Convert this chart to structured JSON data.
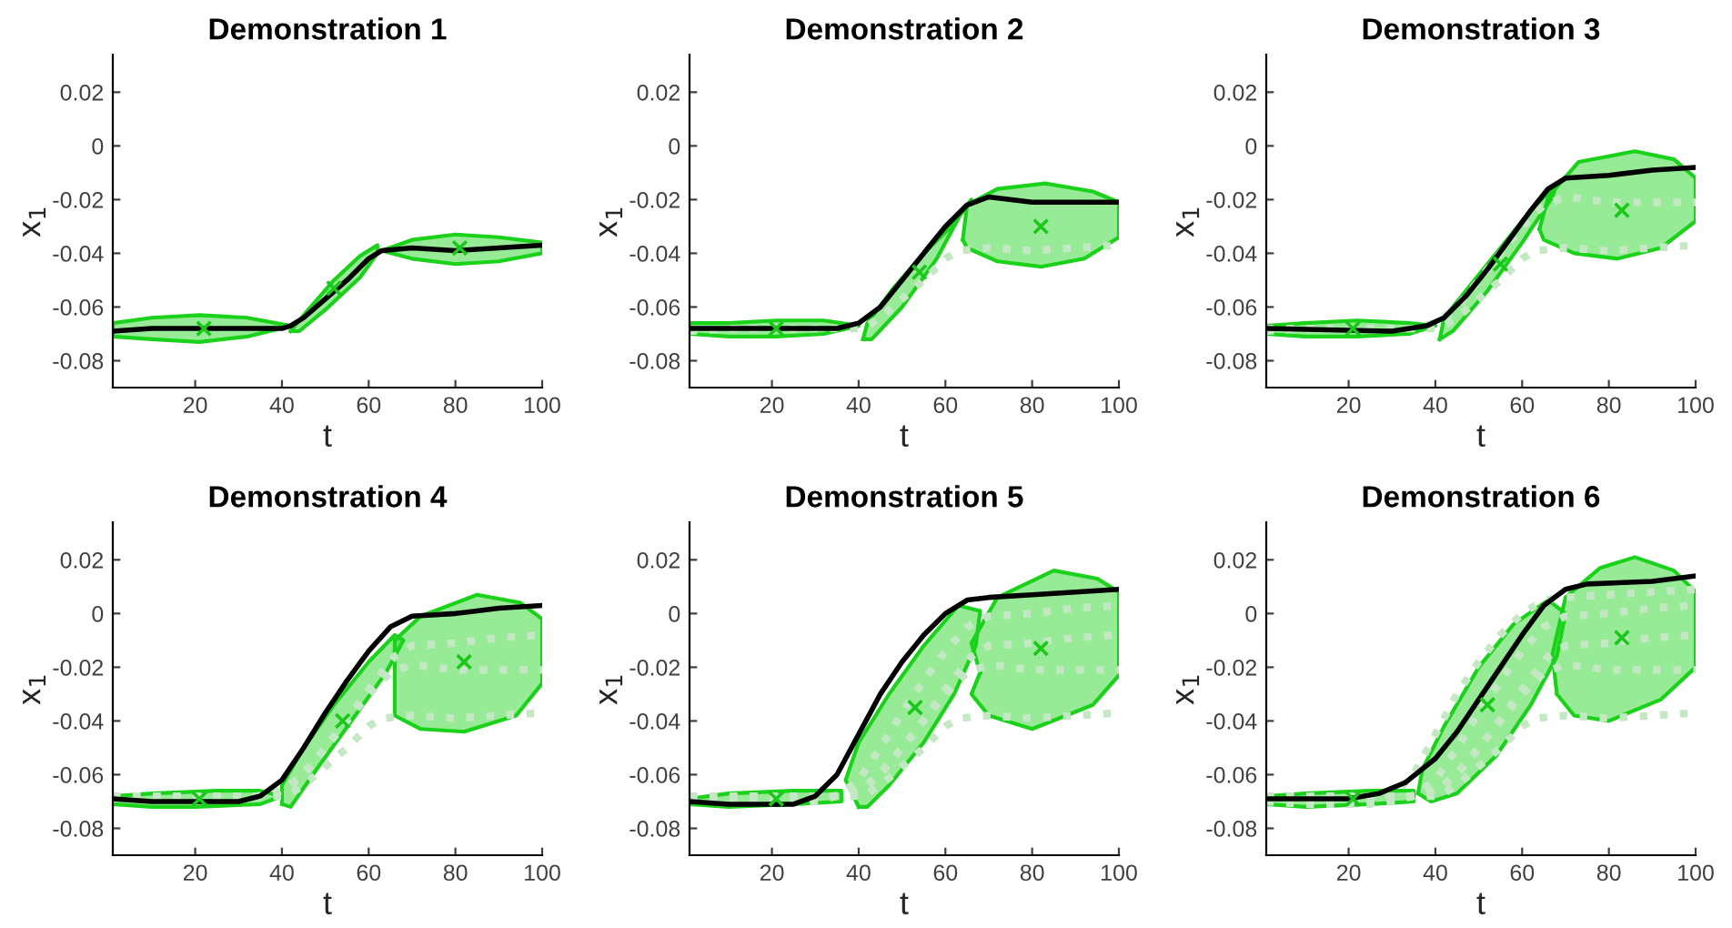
{
  "chart_data": [
    {
      "type": "line",
      "title": "Demonstration 1",
      "xlabel": "t",
      "ylabel": "x$_{1}$",
      "xlim": [
        1,
        100
      ],
      "ylim": [
        -0.09,
        0.034
      ],
      "xticks": [
        20,
        40,
        60,
        80,
        100
      ],
      "yticks": [
        -0.08,
        -0.06,
        -0.04,
        -0.02,
        0,
        0.02
      ],
      "series": [
        {
          "type": "area",
          "color": "#19d219",
          "x": [
            1,
            10,
            21,
            32,
            42,
            32,
            21,
            10,
            1
          ],
          "values": [
            -0.066,
            -0.064,
            -0.063,
            -0.064,
            -0.067,
            -0.071,
            -0.073,
            -0.072,
            -0.071
          ]
        },
        {
          "type": "area",
          "color": "#19d219",
          "x": [
            42,
            45,
            52,
            58,
            62,
            62,
            58,
            50,
            44
          ],
          "values": [
            -0.069,
            -0.063,
            -0.05,
            -0.041,
            -0.037,
            -0.04,
            -0.049,
            -0.061,
            -0.069
          ]
        },
        {
          "type": "area",
          "color": "#19d219",
          "x": [
            63,
            70,
            80,
            90,
            100,
            100,
            90,
            80,
            70
          ],
          "values": [
            -0.039,
            -0.035,
            -0.033,
            -0.034,
            -0.036,
            -0.04,
            -0.043,
            -0.044,
            -0.042
          ]
        },
        {
          "type": "line",
          "color": "#000000",
          "x": [
            1,
            10,
            40,
            42,
            45,
            50,
            55,
            60,
            63,
            70,
            80,
            90,
            100
          ],
          "values": [
            -0.069,
            -0.068,
            -0.068,
            -0.067,
            -0.064,
            -0.057,
            -0.05,
            -0.042,
            -0.039,
            -0.038,
            -0.039,
            -0.038,
            -0.037
          ]
        },
        {
          "type": "scatter",
          "color": "#19c819",
          "marker": "cross",
          "x": [
            22,
            52,
            81
          ],
          "values": [
            -0.068,
            -0.053,
            -0.038
          ]
        }
      ]
    },
    {
      "type": "line",
      "title": "Demonstration 2",
      "xlabel": "t",
      "ylabel": "x$_{1}$",
      "xlim": [
        1,
        100
      ],
      "ylim": [
        -0.09,
        0.034
      ],
      "xticks": [
        20,
        40,
        60,
        80,
        100
      ],
      "yticks": [
        -0.08,
        -0.06,
        -0.04,
        -0.02,
        0,
        0.02
      ],
      "series": [
        {
          "type": "area",
          "color": "#19d219",
          "x": [
            1,
            10,
            21,
            32,
            40,
            32,
            21,
            10,
            1
          ],
          "values": [
            -0.066,
            -0.066,
            -0.065,
            -0.065,
            -0.067,
            -0.07,
            -0.071,
            -0.071,
            -0.07
          ]
        },
        {
          "type": "area",
          "color": "#19d219",
          "x": [
            41,
            42,
            48,
            55,
            62,
            66,
            64,
            58,
            50,
            43
          ],
          "values": [
            -0.072,
            -0.066,
            -0.053,
            -0.04,
            -0.029,
            -0.02,
            -0.024,
            -0.042,
            -0.06,
            -0.072
          ]
        },
        {
          "type": "area",
          "color": "#19d219",
          "x": [
            64,
            65,
            72,
            83,
            94,
            100,
            100,
            92,
            82,
            72,
            65
          ],
          "values": [
            -0.035,
            -0.022,
            -0.016,
            -0.014,
            -0.017,
            -0.021,
            -0.034,
            -0.042,
            -0.045,
            -0.043,
            -0.038
          ]
        },
        {
          "type": "line",
          "color": "#c4e8c4",
          "line_style": "dotted",
          "x": [
            1,
            10,
            40,
            42,
            45,
            50,
            55,
            60,
            63,
            70,
            80,
            90,
            100
          ],
          "values": [
            -0.069,
            -0.068,
            -0.068,
            -0.067,
            -0.064,
            -0.057,
            -0.05,
            -0.042,
            -0.039,
            -0.038,
            -0.039,
            -0.038,
            -0.037
          ]
        },
        {
          "type": "line",
          "color": "#000000",
          "x": [
            1,
            35,
            40,
            45,
            50,
            55,
            60,
            65,
            70,
            80,
            100
          ],
          "values": [
            -0.068,
            -0.068,
            -0.066,
            -0.06,
            -0.05,
            -0.04,
            -0.03,
            -0.022,
            -0.019,
            -0.021,
            -0.021
          ]
        },
        {
          "type": "scatter",
          "color": "#19c819",
          "marker": "cross",
          "x": [
            21,
            54,
            82
          ],
          "values": [
            -0.068,
            -0.047,
            -0.03
          ]
        }
      ]
    },
    {
      "type": "line",
      "title": "Demonstration 3",
      "xlabel": "t",
      "ylabel": "x$_{1}$",
      "xlim": [
        1,
        100
      ],
      "ylim": [
        -0.09,
        0.034
      ],
      "xticks": [
        20,
        40,
        60,
        80,
        100
      ],
      "yticks": [
        -0.08,
        -0.06,
        -0.04,
        -0.02,
        0,
        0.02
      ],
      "series": [
        {
          "type": "area",
          "color": "#19d219",
          "x": [
            1,
            10,
            22,
            34,
            40,
            34,
            22,
            10,
            1
          ],
          "values": [
            -0.067,
            -0.066,
            -0.065,
            -0.066,
            -0.067,
            -0.07,
            -0.071,
            -0.071,
            -0.07
          ]
        },
        {
          "type": "area",
          "color": "#19d219",
          "x": [
            41,
            42,
            48,
            55,
            62,
            68,
            67,
            60,
            52,
            44
          ],
          "values": [
            -0.072,
            -0.064,
            -0.052,
            -0.038,
            -0.024,
            -0.014,
            -0.019,
            -0.036,
            -0.054,
            -0.069
          ]
        },
        {
          "type": "area",
          "color": "#19d219",
          "x": [
            64,
            66,
            73,
            86,
            95,
            100,
            100,
            92,
            82,
            72,
            65
          ],
          "values": [
            -0.031,
            -0.019,
            -0.006,
            -0.002,
            -0.005,
            -0.012,
            -0.028,
            -0.038,
            -0.042,
            -0.04,
            -0.035
          ]
        },
        {
          "type": "line",
          "color": "#c4e8c4",
          "line_style": "dotted",
          "x": [
            1,
            10,
            40,
            42,
            45,
            50,
            55,
            60,
            63,
            70,
            80,
            90,
            100
          ],
          "values": [
            -0.069,
            -0.068,
            -0.068,
            -0.067,
            -0.064,
            -0.057,
            -0.05,
            -0.042,
            -0.039,
            -0.038,
            -0.039,
            -0.038,
            -0.037
          ]
        },
        {
          "type": "line",
          "color": "#c4e8c4",
          "line_style": "dotted",
          "x": [
            1,
            35,
            40,
            45,
            50,
            55,
            60,
            65,
            70,
            80,
            100
          ],
          "values": [
            -0.068,
            -0.068,
            -0.066,
            -0.06,
            -0.05,
            -0.04,
            -0.03,
            -0.022,
            -0.019,
            -0.021,
            -0.021
          ]
        },
        {
          "type": "line",
          "color": "#000000",
          "x": [
            1,
            30,
            38,
            42,
            47,
            52,
            57,
            62,
            66,
            70,
            80,
            90,
            100
          ],
          "values": [
            -0.068,
            -0.069,
            -0.067,
            -0.064,
            -0.056,
            -0.046,
            -0.035,
            -0.024,
            -0.016,
            -0.012,
            -0.011,
            -0.009,
            -0.008
          ]
        },
        {
          "type": "scatter",
          "color": "#19c819",
          "marker": "cross",
          "x": [
            21,
            55,
            83
          ],
          "values": [
            -0.068,
            -0.044,
            -0.024
          ]
        }
      ]
    },
    {
      "type": "line",
      "title": "Demonstration 4",
      "xlabel": "t",
      "ylabel": "x$_{1}$",
      "xlim": [
        1,
        100
      ],
      "ylim": [
        -0.09,
        0.034
      ],
      "xticks": [
        20,
        40,
        60,
        80,
        100
      ],
      "yticks": [
        -0.08,
        -0.06,
        -0.04,
        -0.02,
        0,
        0.02
      ],
      "series": [
        {
          "type": "area",
          "color": "#19d219",
          "x": [
            1,
            10,
            25,
            35,
            40,
            35,
            20,
            10,
            1
          ],
          "values": [
            -0.068,
            -0.067,
            -0.066,
            -0.066,
            -0.068,
            -0.071,
            -0.072,
            -0.072,
            -0.071
          ]
        },
        {
          "type": "area",
          "color": "#19d219",
          "x": [
            40,
            40,
            45,
            52,
            60,
            66,
            68,
            64,
            56,
            48,
            42
          ],
          "values": [
            -0.071,
            -0.064,
            -0.05,
            -0.034,
            -0.018,
            -0.008,
            -0.01,
            -0.022,
            -0.04,
            -0.058,
            -0.072
          ]
        },
        {
          "type": "area",
          "color": "#19d219",
          "x": [
            66,
            66,
            72,
            85,
            95,
            100,
            100,
            94,
            82,
            72,
            66
          ],
          "values": [
            -0.036,
            -0.01,
            -0.001,
            0.007,
            0.004,
            -0.002,
            -0.026,
            -0.038,
            -0.044,
            -0.043,
            -0.038
          ]
        },
        {
          "type": "line",
          "color": "#c4e8c4",
          "line_style": "dotted",
          "x": [
            1,
            10,
            40,
            42,
            45,
            50,
            55,
            60,
            63,
            70,
            80,
            90,
            100
          ],
          "values": [
            -0.069,
            -0.068,
            -0.068,
            -0.067,
            -0.064,
            -0.057,
            -0.05,
            -0.042,
            -0.039,
            -0.038,
            -0.039,
            -0.038,
            -0.037
          ]
        },
        {
          "type": "line",
          "color": "#c4e8c4",
          "line_style": "dotted",
          "x": [
            1,
            35,
            40,
            45,
            50,
            55,
            60,
            65,
            70,
            80,
            100
          ],
          "values": [
            -0.068,
            -0.068,
            -0.066,
            -0.06,
            -0.05,
            -0.04,
            -0.03,
            -0.022,
            -0.019,
            -0.021,
            -0.021
          ]
        },
        {
          "type": "line",
          "color": "#c4e8c4",
          "line_style": "dotted",
          "x": [
            1,
            30,
            38,
            42,
            47,
            52,
            57,
            62,
            66,
            70,
            80,
            90,
            100
          ],
          "values": [
            -0.068,
            -0.069,
            -0.067,
            -0.064,
            -0.056,
            -0.046,
            -0.035,
            -0.024,
            -0.016,
            -0.012,
            -0.011,
            -0.009,
            -0.008
          ]
        },
        {
          "type": "line",
          "color": "#000000",
          "x": [
            1,
            10,
            30,
            35,
            40,
            45,
            50,
            55,
            60,
            65,
            70,
            80,
            90,
            100
          ],
          "values": [
            -0.069,
            -0.07,
            -0.07,
            -0.068,
            -0.062,
            -0.05,
            -0.037,
            -0.025,
            -0.014,
            -0.005,
            -0.001,
            0.0,
            0.002,
            0.003
          ]
        },
        {
          "type": "scatter",
          "color": "#19c819",
          "marker": "cross",
          "x": [
            21,
            54,
            82
          ],
          "values": [
            -0.069,
            -0.04,
            -0.018
          ]
        }
      ]
    },
    {
      "type": "line",
      "title": "Demonstration 5",
      "xlabel": "t",
      "ylabel": "x$_{1}$",
      "xlim": [
        1,
        100
      ],
      "ylim": [
        -0.09,
        0.034
      ],
      "xticks": [
        20,
        40,
        60,
        80,
        100
      ],
      "yticks": [
        -0.08,
        -0.06,
        -0.04,
        -0.02,
        0,
        0.02
      ],
      "series": [
        {
          "type": "area",
          "color": "#19d219",
          "x": [
            1,
            10,
            25,
            36,
            36,
            25,
            10,
            1
          ],
          "values": [
            -0.069,
            -0.067,
            -0.066,
            -0.066,
            -0.07,
            -0.071,
            -0.072,
            -0.071
          ]
        },
        {
          "type": "area",
          "color": "#19d219",
          "x": [
            40,
            37,
            40,
            47,
            55,
            63,
            68,
            67,
            62,
            55,
            47,
            42
          ],
          "values": [
            -0.072,
            -0.062,
            -0.048,
            -0.03,
            -0.012,
            0.003,
            0.001,
            -0.012,
            -0.03,
            -0.048,
            -0.064,
            -0.072
          ]
        },
        {
          "type": "area",
          "color": "#19d219",
          "x": [
            68,
            66,
            72,
            85,
            95,
            100,
            100,
            94,
            80,
            70,
            66
          ],
          "values": [
            -0.022,
            -0.011,
            0.006,
            0.016,
            0.013,
            0.008,
            -0.023,
            -0.034,
            -0.043,
            -0.038,
            -0.03
          ]
        },
        {
          "type": "line",
          "color": "#c4e8c4",
          "line_style": "dotted",
          "x": [
            1,
            10,
            40,
            42,
            45,
            50,
            55,
            60,
            63,
            70,
            80,
            90,
            100
          ],
          "values": [
            -0.069,
            -0.068,
            -0.068,
            -0.067,
            -0.064,
            -0.057,
            -0.05,
            -0.042,
            -0.039,
            -0.038,
            -0.039,
            -0.038,
            -0.037
          ]
        },
        {
          "type": "line",
          "color": "#c4e8c4",
          "line_style": "dotted",
          "x": [
            1,
            35,
            40,
            45,
            50,
            55,
            60,
            65,
            70,
            80,
            100
          ],
          "values": [
            -0.068,
            -0.068,
            -0.066,
            -0.06,
            -0.05,
            -0.04,
            -0.03,
            -0.022,
            -0.019,
            -0.021,
            -0.021
          ]
        },
        {
          "type": "line",
          "color": "#c4e8c4",
          "line_style": "dotted",
          "x": [
            1,
            30,
            38,
            42,
            47,
            52,
            57,
            62,
            66,
            70,
            80,
            90,
            100
          ],
          "values": [
            -0.068,
            -0.069,
            -0.067,
            -0.064,
            -0.056,
            -0.046,
            -0.035,
            -0.024,
            -0.016,
            -0.012,
            -0.011,
            -0.009,
            -0.008
          ]
        },
        {
          "type": "line",
          "color": "#c4e8c4",
          "line_style": "dotted",
          "x": [
            1,
            10,
            30,
            35,
            40,
            45,
            50,
            55,
            60,
            65,
            70,
            80,
            90,
            100
          ],
          "values": [
            -0.069,
            -0.07,
            -0.07,
            -0.068,
            -0.062,
            -0.05,
            -0.037,
            -0.025,
            -0.014,
            -0.005,
            -0.001,
            0.0,
            0.002,
            0.003
          ]
        },
        {
          "type": "line",
          "color": "#000000",
          "x": [
            1,
            10,
            25,
            30,
            35,
            40,
            45,
            50,
            55,
            60,
            65,
            70,
            80,
            90,
            100
          ],
          "values": [
            -0.07,
            -0.071,
            -0.071,
            -0.068,
            -0.06,
            -0.045,
            -0.03,
            -0.018,
            -0.008,
            0.0,
            0.005,
            0.006,
            0.007,
            0.008,
            0.009
          ]
        },
        {
          "type": "scatter",
          "color": "#19c819",
          "marker": "cross",
          "x": [
            21,
            53,
            82
          ],
          "values": [
            -0.069,
            -0.035,
            -0.013
          ]
        }
      ]
    },
    {
      "type": "line",
      "title": "Demonstration 6",
      "xlabel": "t",
      "ylabel": "x$_{1}$",
      "xlim": [
        1,
        100
      ],
      "ylim": [
        -0.09,
        0.034
      ],
      "xticks": [
        20,
        40,
        60,
        80,
        100
      ],
      "yticks": [
        -0.08,
        -0.06,
        -0.04,
        -0.02,
        0,
        0.02
      ],
      "series": [
        {
          "type": "area",
          "color": "#19d219",
          "x": [
            1,
            10,
            25,
            35,
            35,
            25,
            10,
            1
          ],
          "values": [
            -0.068,
            -0.067,
            -0.066,
            -0.066,
            -0.07,
            -0.071,
            -0.072,
            -0.071
          ]
        },
        {
          "type": "area",
          "color": "#19d219",
          "x": [
            36,
            37,
            42,
            50,
            58,
            66,
            70,
            68,
            62,
            54,
            45,
            39
          ],
          "values": [
            -0.067,
            -0.058,
            -0.042,
            -0.02,
            -0.004,
            0.005,
            0.0,
            -0.016,
            -0.034,
            -0.053,
            -0.067,
            -0.07
          ]
        },
        {
          "type": "area",
          "color": "#19d219",
          "x": [
            68,
            67,
            70,
            78,
            86,
            95,
            100,
            100,
            92,
            80,
            72
          ],
          "values": [
            -0.03,
            -0.015,
            0.006,
            0.017,
            0.021,
            0.016,
            0.008,
            -0.02,
            -0.032,
            -0.04,
            -0.038
          ]
        },
        {
          "type": "line",
          "color": "#c4e8c4",
          "line_style": "dotted",
          "x": [
            1,
            10,
            40,
            42,
            45,
            50,
            55,
            60,
            63,
            70,
            80,
            90,
            100
          ],
          "values": [
            -0.069,
            -0.068,
            -0.068,
            -0.067,
            -0.064,
            -0.057,
            -0.05,
            -0.042,
            -0.039,
            -0.038,
            -0.039,
            -0.038,
            -0.037
          ]
        },
        {
          "type": "line",
          "color": "#c4e8c4",
          "line_style": "dotted",
          "x": [
            1,
            35,
            40,
            45,
            50,
            55,
            60,
            65,
            70,
            80,
            100
          ],
          "values": [
            -0.068,
            -0.068,
            -0.066,
            -0.06,
            -0.05,
            -0.04,
            -0.03,
            -0.022,
            -0.019,
            -0.021,
            -0.021
          ]
        },
        {
          "type": "line",
          "color": "#c4e8c4",
          "line_style": "dotted",
          "x": [
            1,
            30,
            38,
            42,
            47,
            52,
            57,
            62,
            66,
            70,
            80,
            90,
            100
          ],
          "values": [
            -0.068,
            -0.069,
            -0.067,
            -0.064,
            -0.056,
            -0.046,
            -0.035,
            -0.024,
            -0.016,
            -0.012,
            -0.011,
            -0.009,
            -0.008
          ]
        },
        {
          "type": "line",
          "color": "#c4e8c4",
          "line_style": "dotted",
          "x": [
            1,
            10,
            30,
            35,
            40,
            45,
            50,
            55,
            60,
            65,
            70,
            80,
            90,
            100
          ],
          "values": [
            -0.069,
            -0.07,
            -0.07,
            -0.068,
            -0.062,
            -0.05,
            -0.037,
            -0.025,
            -0.014,
            -0.005,
            -0.001,
            0.0,
            0.002,
            0.003
          ]
        },
        {
          "type": "line",
          "color": "#c4e8c4",
          "line_style": "dotted",
          "x": [
            1,
            10,
            25,
            30,
            35,
            40,
            45,
            50,
            55,
            60,
            65,
            70,
            80,
            90,
            100
          ],
          "values": [
            -0.07,
            -0.071,
            -0.071,
            -0.068,
            -0.06,
            -0.045,
            -0.03,
            -0.018,
            -0.008,
            0.0,
            0.005,
            0.006,
            0.007,
            0.008,
            0.009
          ]
        },
        {
          "type": "line",
          "color": "#000000",
          "x": [
            1,
            20,
            27,
            33,
            40,
            45,
            50,
            55,
            60,
            65,
            70,
            75,
            90,
            100
          ],
          "values": [
            -0.069,
            -0.069,
            -0.067,
            -0.063,
            -0.054,
            -0.044,
            -0.032,
            -0.02,
            -0.008,
            0.003,
            0.009,
            0.011,
            0.012,
            0.014
          ]
        },
        {
          "type": "scatter",
          "color": "#19c819",
          "marker": "cross",
          "x": [
            21,
            52,
            83
          ],
          "values": [
            -0.069,
            -0.034,
            -0.009
          ]
        }
      ]
    }
  ]
}
